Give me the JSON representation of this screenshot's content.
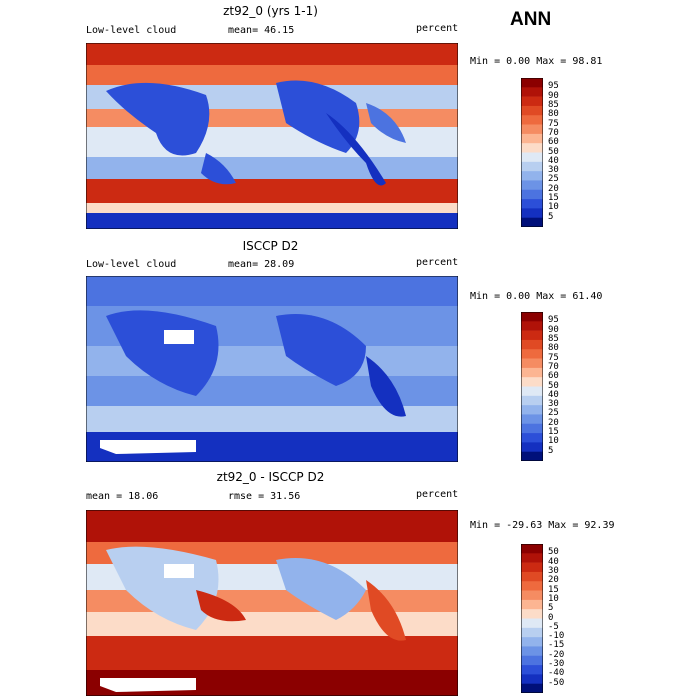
{
  "season": "ANN",
  "panels": [
    {
      "title": "zt92_0 (yrs 1-1)",
      "left": "Low-level cloud",
      "mid": "mean=  46.15",
      "units": "percent",
      "stats": "Min =   0.00 Max =  98.81",
      "colorbar": {
        "labels": [
          "95",
          "90",
          "85",
          "80",
          "75",
          "70",
          "60",
          "50",
          "40",
          "30",
          "25",
          "20",
          "15",
          "10",
          "5"
        ],
        "colors": [
          "#8b0000",
          "#b01208",
          "#cc2a12",
          "#e04a24",
          "#ee6a3e",
          "#f58c62",
          "#fcb592",
          "#fcdcc8",
          "#dfe9f5",
          "#b8cff0",
          "#92b3ec",
          "#6c93e6",
          "#4c73e0",
          "#2c4fd8",
          "#1430c0",
          "#00107a"
        ]
      }
    },
    {
      "title": "ISCCP D2",
      "left": "Low-level cloud",
      "mid": "mean=  28.09",
      "units": "percent",
      "stats": "Min =   0.00 Max =  61.40",
      "colorbar": {
        "labels": [
          "95",
          "90",
          "85",
          "80",
          "75",
          "70",
          "60",
          "50",
          "40",
          "30",
          "25",
          "20",
          "15",
          "10",
          "5"
        ],
        "colors": [
          "#8b0000",
          "#b01208",
          "#cc2a12",
          "#e04a24",
          "#ee6a3e",
          "#f58c62",
          "#fcb592",
          "#fcdcc8",
          "#dfe9f5",
          "#b8cff0",
          "#92b3ec",
          "#6c93e6",
          "#4c73e0",
          "#2c4fd8",
          "#1430c0",
          "#00107a"
        ]
      }
    },
    {
      "title": "zt92_0 - ISCCP D2",
      "left": "mean =  18.06",
      "mid": "rmse =  31.56",
      "units": "percent",
      "stats": "Min = -29.63 Max =  92.39",
      "colorbar": {
        "labels": [
          "50",
          "40",
          "30",
          "20",
          "15",
          "10",
          "5",
          "0",
          "-5",
          "-10",
          "-15",
          "-20",
          "-30",
          "-40",
          "-50"
        ],
        "colors": [
          "#8b0000",
          "#b01208",
          "#cc2a12",
          "#e04a24",
          "#ee6a3e",
          "#f58c62",
          "#fcb592",
          "#fcdcc8",
          "#dfe9f5",
          "#b8cff0",
          "#92b3ec",
          "#6c93e6",
          "#4c73e0",
          "#2c4fd8",
          "#1430c0",
          "#00107a"
        ]
      }
    }
  ]
}
